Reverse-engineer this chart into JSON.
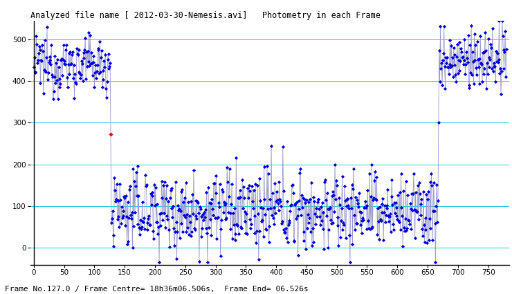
{
  "title": "Analyzed file name [ 2012-03-30-Nemesis.avi]   Photometry in each Frame",
  "xlabel_bottom": "Frame No.127.0 / Frame Centre= 18h36m06.506s,  Frame End= 06.526s",
  "xlim": [
    -5,
    785
  ],
  "ylim": [
    -40,
    545
  ],
  "yticks": [
    0,
    100,
    200,
    300,
    400,
    500
  ],
  "xticks": [
    0,
    50,
    100,
    150,
    200,
    250,
    300,
    350,
    400,
    450,
    500,
    550,
    600,
    650,
    700,
    750
  ],
  "line_color": "#9999cc",
  "dot_color": "#0000dd",
  "red_dot_x": 127,
  "red_dot_y": 272,
  "red_dot_color": "#ff0000",
  "grid_color": "#00cccc",
  "grid_alpha": 0.9,
  "grid_lw": 0.7,
  "occultation_start": 127,
  "occultation_end": 668,
  "bright_mean": 440,
  "dim_mean": 90,
  "figsize": [
    7.4,
    4.25
  ],
  "dpi": 100
}
